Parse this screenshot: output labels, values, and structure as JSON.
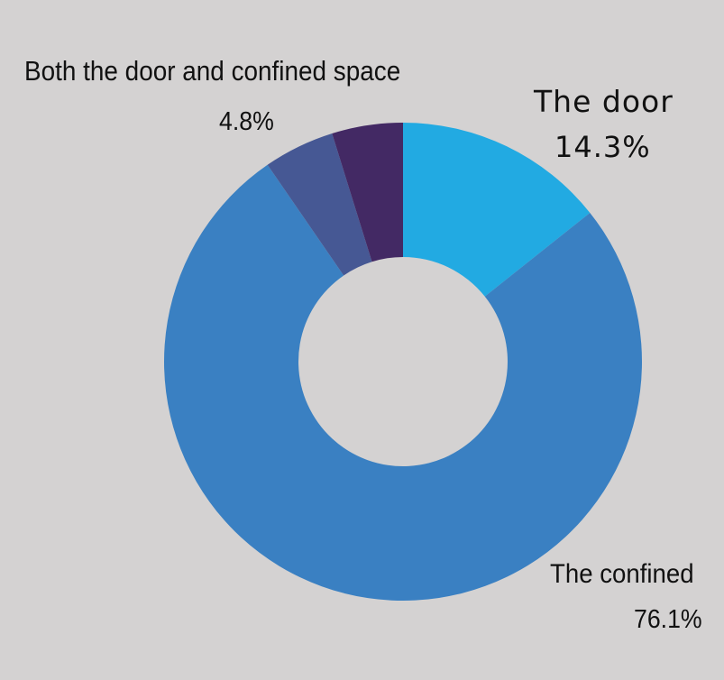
{
  "chart_data": {
    "type": "pie",
    "variant": "donut",
    "title": "",
    "categories": [
      "The door",
      "The confined",
      "Both the door and confined space",
      ""
    ],
    "values": [
      14.3,
      76.1,
      4.8,
      4.8
    ],
    "value_labels": [
      "14.3%",
      "76.1%",
      "4.8%",
      ""
    ],
    "colors": [
      "#22aae2",
      "#3a80c2",
      "#465894",
      "#432964"
    ],
    "legend": "none",
    "grid": false
  }
}
